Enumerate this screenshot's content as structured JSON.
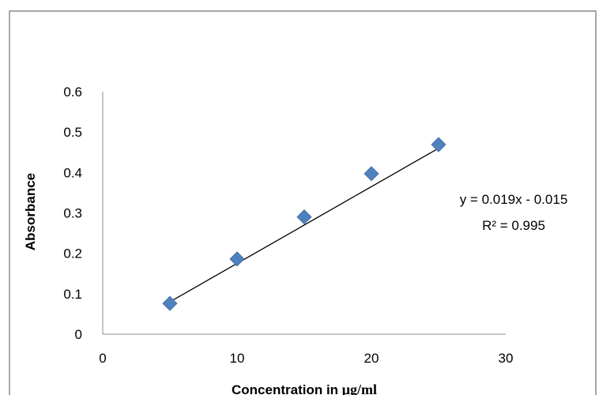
{
  "chart_data": {
    "type": "scatter",
    "xlabel": "Concentration in ",
    "xlabel_unit": "μg/ml",
    "ylabel": "Absorbance",
    "xlim": [
      0,
      30
    ],
    "ylim": [
      0,
      0.6
    ],
    "x_ticks": [
      "0",
      "10",
      "20",
      "30"
    ],
    "y_ticks": [
      "0",
      "0.1",
      "0.2",
      "0.3",
      "0.4",
      "0.5",
      "0.6"
    ],
    "grid": false,
    "legend": "none",
    "marker": "diamond",
    "marker_color": "#4f81bd",
    "trendline": {
      "slope": 0.019,
      "intercept": -0.015,
      "from_x": 5,
      "to_x": 25
    },
    "equation": "y = 0.019x - 0.015",
    "r_squared": "R² = 0.995",
    "series": [
      {
        "points": [
          {
            "x": 5,
            "y": 0.076
          },
          {
            "x": 10,
            "y": 0.186
          },
          {
            "x": 15,
            "y": 0.29
          },
          {
            "x": 20,
            "y": 0.397
          },
          {
            "x": 25,
            "y": 0.469
          }
        ]
      }
    ]
  }
}
